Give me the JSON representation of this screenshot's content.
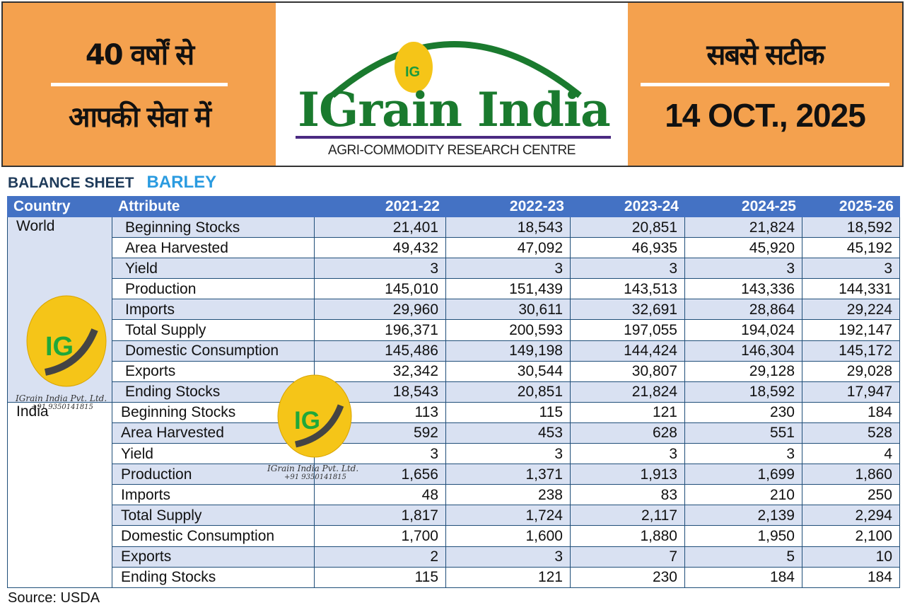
{
  "banner": {
    "left_line1": "40 वर्षों से",
    "left_line2": "आपकी सेवा में",
    "logo_title": "IGrain India",
    "logo_subtitle": "AGRI-COMMODITY RESEARCH CENTRE",
    "logo_mark": "IG",
    "right_line1": "सबसे सटीक",
    "date": "14 OCT., 2025"
  },
  "heading": {
    "label": "BALANCE SHEET",
    "commodity": "BARLEY"
  },
  "table": {
    "columns": [
      "Country",
      "Attribute",
      "2021-22",
      "2022-23",
      "2023-24",
      "2024-25",
      "2025-26"
    ],
    "groups": [
      {
        "country": "World",
        "rows": [
          {
            "attr": "Beginning Stocks",
            "values": [
              "21,401",
              "18,543",
              "20,851",
              "21,824",
              "18,592"
            ]
          },
          {
            "attr": "Area Harvested",
            "values": [
              "49,432",
              "47,092",
              "46,935",
              "45,920",
              "45,192"
            ]
          },
          {
            "attr": "Yield",
            "values": [
              "3",
              "3",
              "3",
              "3",
              "3"
            ]
          },
          {
            "attr": "Production",
            "values": [
              "145,010",
              "151,439",
              "143,513",
              "143,336",
              "144,331"
            ]
          },
          {
            "attr": "Imports",
            "values": [
              "29,960",
              "30,611",
              "32,691",
              "28,864",
              "29,224"
            ]
          },
          {
            "attr": "Total Supply",
            "values": [
              "196,371",
              "200,593",
              "197,055",
              "194,024",
              "192,147"
            ]
          },
          {
            "attr": "Domestic Consumption",
            "values": [
              "145,486",
              "149,198",
              "144,424",
              "146,304",
              "145,172"
            ]
          },
          {
            "attr": "Exports",
            "values": [
              "32,342",
              "30,544",
              "30,807",
              "29,128",
              "29,028"
            ]
          },
          {
            "attr": "Ending Stocks",
            "values": [
              "18,543",
              "20,851",
              "21,824",
              "18,592",
              "17,947"
            ]
          }
        ]
      },
      {
        "country": "India",
        "rows": [
          {
            "attr": "Beginning Stocks",
            "values": [
              "113",
              "115",
              "121",
              "230",
              "184"
            ]
          },
          {
            "attr": "Area Harvested",
            "values": [
              "592",
              "453",
              "628",
              "551",
              "528"
            ]
          },
          {
            "attr": "Yield",
            "values": [
              "3",
              "3",
              "3",
              "3",
              "4"
            ]
          },
          {
            "attr": "Production",
            "values": [
              "1,656",
              "1,371",
              "1,913",
              "1,699",
              "1,860"
            ]
          },
          {
            "attr": "Imports",
            "values": [
              "48",
              "238",
              "83",
              "210",
              "250"
            ]
          },
          {
            "attr": "Total Supply",
            "values": [
              "1,817",
              "1,724",
              "2,117",
              "2,139",
              "2,294"
            ]
          },
          {
            "attr": "Domestic Consumption",
            "values": [
              "1,700",
              "1,600",
              "1,880",
              "1,950",
              "2,100"
            ]
          },
          {
            "attr": "Exports",
            "values": [
              "2",
              "3",
              "7",
              "5",
              "10"
            ]
          },
          {
            "attr": "Ending Stocks",
            "values": [
              "115",
              "121",
              "230",
              "184",
              "184"
            ]
          }
        ]
      }
    ]
  },
  "watermark": {
    "company": "IGrain India Pvt. Ltd.",
    "phone": "+91 9350141815"
  },
  "source": "Source: USDA",
  "colors": {
    "banner": "#f4a14e",
    "header": "#4472c4",
    "band": "#d9e1f2",
    "logo_green": "#1a7a2e",
    "barley": "#2a9be0"
  }
}
